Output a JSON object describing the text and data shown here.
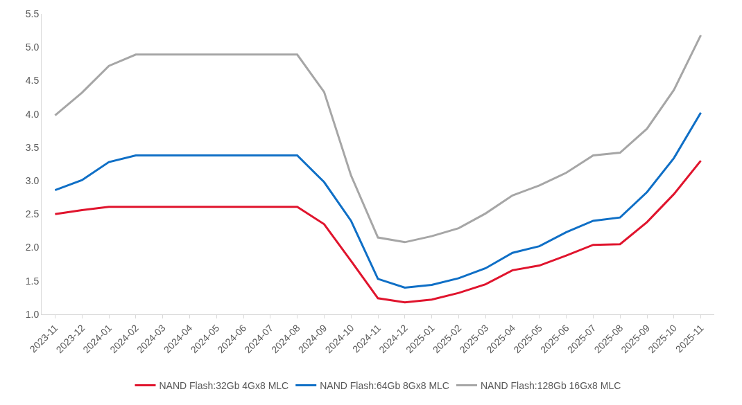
{
  "chart_data": {
    "type": "line",
    "categories": [
      "2023-11",
      "2023-12",
      "2024-01",
      "2024-02",
      "2024-03",
      "2024-04",
      "2024-05",
      "2024-06",
      "2024-07",
      "2024-08",
      "2024-09",
      "2024-10",
      "2024-11",
      "2024-12",
      "2025-01",
      "2025-02",
      "2025-03",
      "2025-04",
      "2025-05",
      "2025-06",
      "2025-07",
      "2025-08",
      "2025-09",
      "2025-10",
      "2025-11"
    ],
    "series": [
      {
        "name": "NAND Flash:32Gb 4Gx8 MLC",
        "color": "#e0142d",
        "values": [
          2.5,
          2.56,
          2.61,
          2.61,
          2.61,
          2.61,
          2.61,
          2.61,
          2.61,
          2.61,
          2.35,
          1.8,
          1.24,
          1.18,
          1.22,
          1.32,
          1.45,
          1.66,
          1.73,
          1.88,
          2.04,
          2.05,
          2.38,
          2.8,
          3.3
        ]
      },
      {
        "name": "NAND Flash:64Gb 8Gx8 MLC",
        "color": "#0f6fc6",
        "values": [
          2.86,
          3.01,
          3.28,
          3.38,
          3.38,
          3.38,
          3.38,
          3.38,
          3.38,
          3.38,
          2.98,
          2.4,
          1.53,
          1.4,
          1.44,
          1.54,
          1.69,
          1.92,
          2.02,
          2.23,
          2.4,
          2.45,
          2.83,
          3.34,
          4.02
        ]
      },
      {
        "name": "NAND Flash:128Gb 16Gx8 MLC",
        "color": "#a6a6a6",
        "values": [
          3.98,
          4.32,
          4.72,
          4.89,
          4.89,
          4.89,
          4.89,
          4.89,
          4.89,
          4.89,
          4.33,
          3.08,
          2.15,
          2.08,
          2.17,
          2.29,
          2.51,
          2.78,
          2.93,
          3.12,
          3.38,
          3.42,
          3.78,
          4.36,
          5.18
        ]
      }
    ],
    "ylim": [
      1.0,
      5.5
    ],
    "yticks": [
      {
        "value": 1.0,
        "label": "1.0"
      },
      {
        "value": 1.5,
        "label": "1.5"
      },
      {
        "value": 2.0,
        "label": "2.0"
      },
      {
        "value": 2.5,
        "label": "2.5"
      },
      {
        "value": 3.0,
        "label": "3.0"
      },
      {
        "value": 3.5,
        "label": "3.5"
      },
      {
        "value": 4.0,
        "label": "4.0"
      },
      {
        "value": 4.5,
        "label": "4.5"
      },
      {
        "value": 5.0,
        "label": "5.0"
      },
      {
        "value": 5.5,
        "label": "5.5"
      }
    ],
    "grid": false,
    "legend": "bottom",
    "marker": "none",
    "line_style": "solid"
  }
}
